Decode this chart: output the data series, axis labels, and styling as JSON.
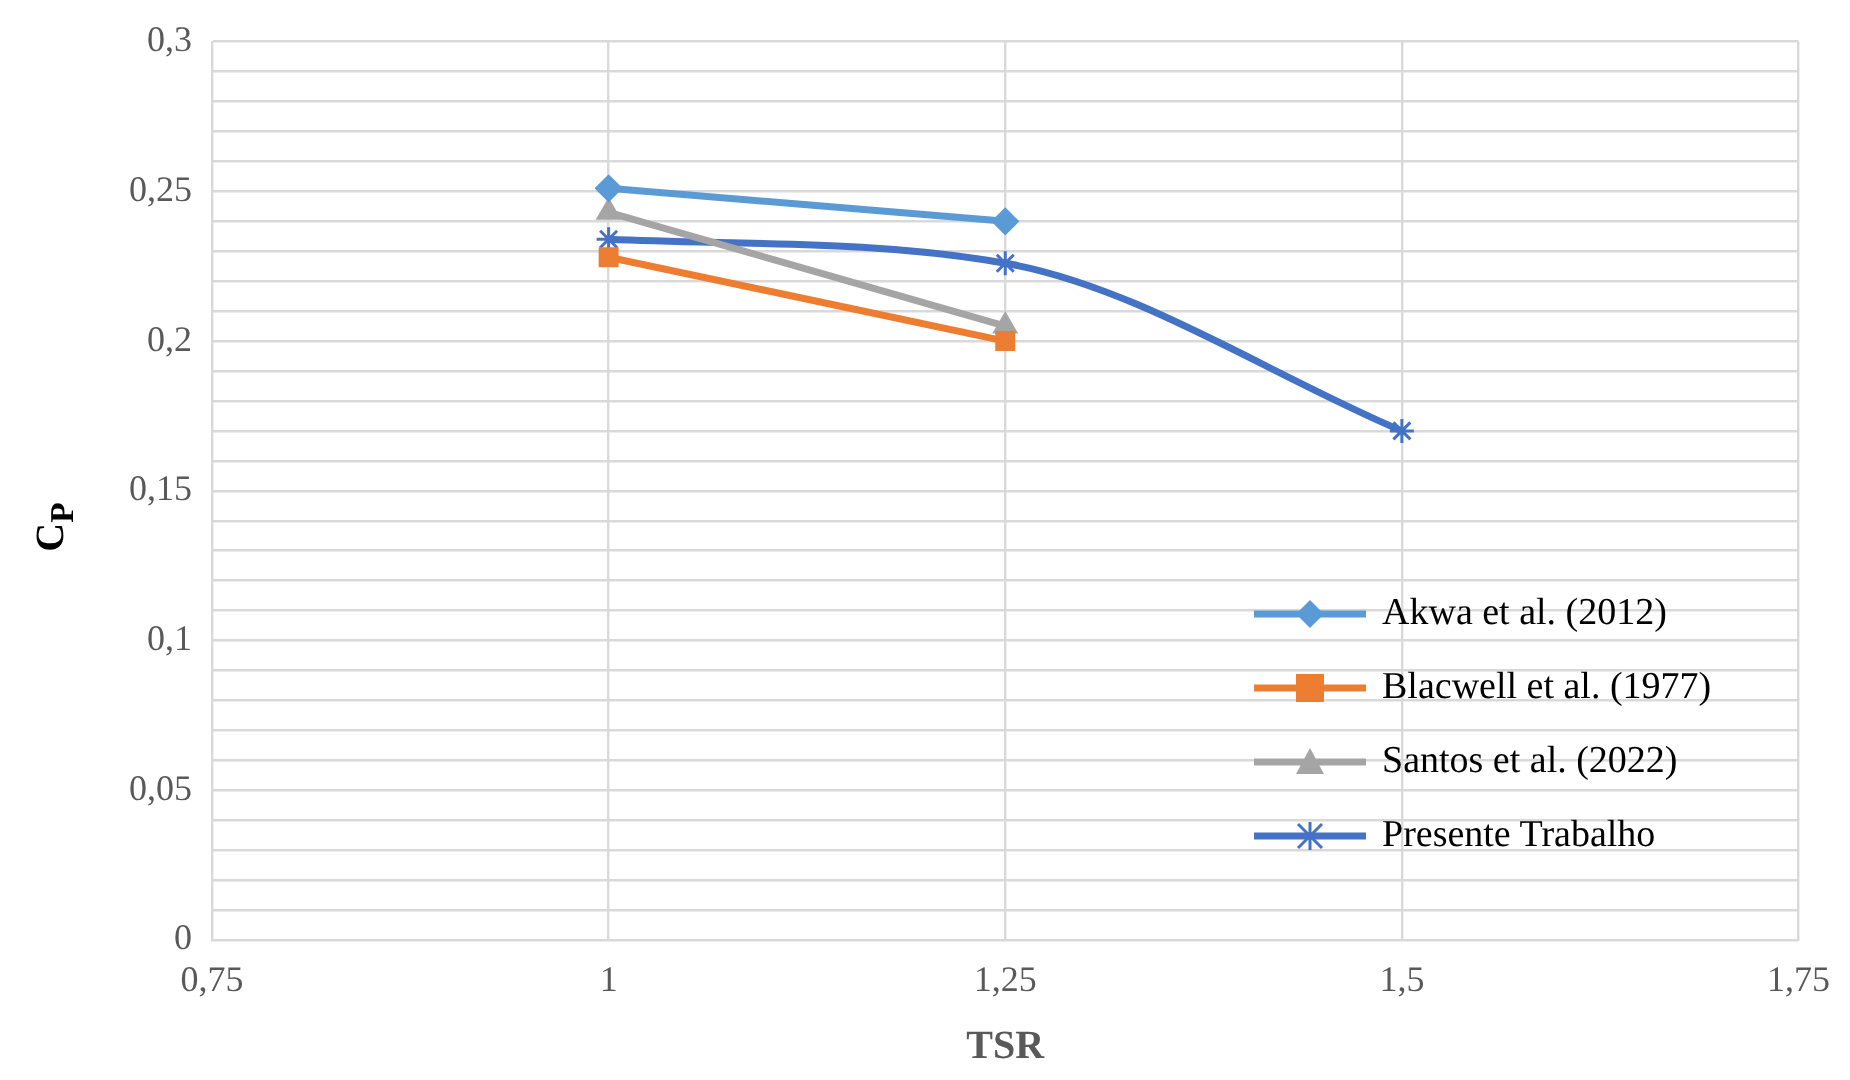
{
  "chart_data": {
    "type": "line",
    "xlabel": "TSR",
    "ylabel": "C$_{P}$",
    "xlim": [
      0.75,
      1.75
    ],
    "xticks": [
      {
        "value": 0.75,
        "label": "0,75"
      },
      1,
      {
        "value": 1.25,
        "label": "1,25"
      },
      {
        "value": 1.5,
        "label": "1,5"
      },
      {
        "value": 1.75,
        "label": "1,75"
      }
    ],
    "ylim": [
      0,
      0.3
    ],
    "yticks": [
      0,
      {
        "value": 0.01,
        "label": null
      },
      {
        "value": 0.02,
        "label": null
      },
      {
        "value": 0.03,
        "label": null
      },
      {
        "value": 0.04,
        "label": null
      },
      {
        "value": 0.05,
        "label": "0,05"
      },
      {
        "value": 0.06,
        "label": null
      },
      {
        "value": 0.07,
        "label": null
      },
      {
        "value": 0.08,
        "label": null
      },
      {
        "value": 0.09,
        "label": null
      },
      {
        "value": 0.1,
        "label": "0,1"
      },
      {
        "value": 0.11,
        "label": null
      },
      {
        "value": 0.12,
        "label": null
      },
      {
        "value": 0.13,
        "label": null
      },
      {
        "value": 0.14,
        "label": null
      },
      {
        "value": 0.15,
        "label": "0,15"
      },
      {
        "value": 0.16,
        "label": null
      },
      {
        "value": 0.17,
        "label": null
      },
      {
        "value": 0.18,
        "label": null
      },
      {
        "value": 0.19,
        "label": null
      },
      {
        "value": 0.2,
        "label": "0,2"
      },
      {
        "value": 0.21,
        "label": null
      },
      {
        "value": 0.22,
        "label": null
      },
      {
        "value": 0.23,
        "label": null
      },
      {
        "value": 0.24,
        "label": null
      },
      {
        "value": 0.25,
        "label": "0,25"
      },
      {
        "value": 0.26,
        "label": null
      },
      {
        "value": 0.27,
        "label": null
      },
      {
        "value": 0.28,
        "label": null
      },
      {
        "value": 0.29,
        "label": null
      },
      {
        "value": 0.3,
        "label": "0,3"
      }
    ],
    "grid": true,
    "legend": "bottom right",
    "line_style": "solid",
    "series": [
      {
        "name": "Akwa et al. (2012)",
        "color": "#5b9bd5",
        "marker": "diamond",
        "x": [
          1,
          1.25
        ],
        "values": [
          0.251,
          0.24
        ]
      },
      {
        "name": "Blacwell et al. (1977)",
        "color": "#ed7d31",
        "marker": "square",
        "x": [
          1,
          1.25
        ],
        "values": [
          0.228,
          0.2
        ]
      },
      {
        "name": "Santos et al. (2022)",
        "color": "#a5a5a5",
        "marker": "triangle",
        "x": [
          1,
          1.25
        ],
        "values": [
          0.243,
          0.205
        ]
      },
      {
        "name": "Presente Trabalho",
        "color": "#4472c4",
        "marker": "cross",
        "x": [
          1,
          1.25,
          1.5
        ],
        "values": [
          0.234,
          0.226,
          0.17
        ]
      }
    ]
  }
}
